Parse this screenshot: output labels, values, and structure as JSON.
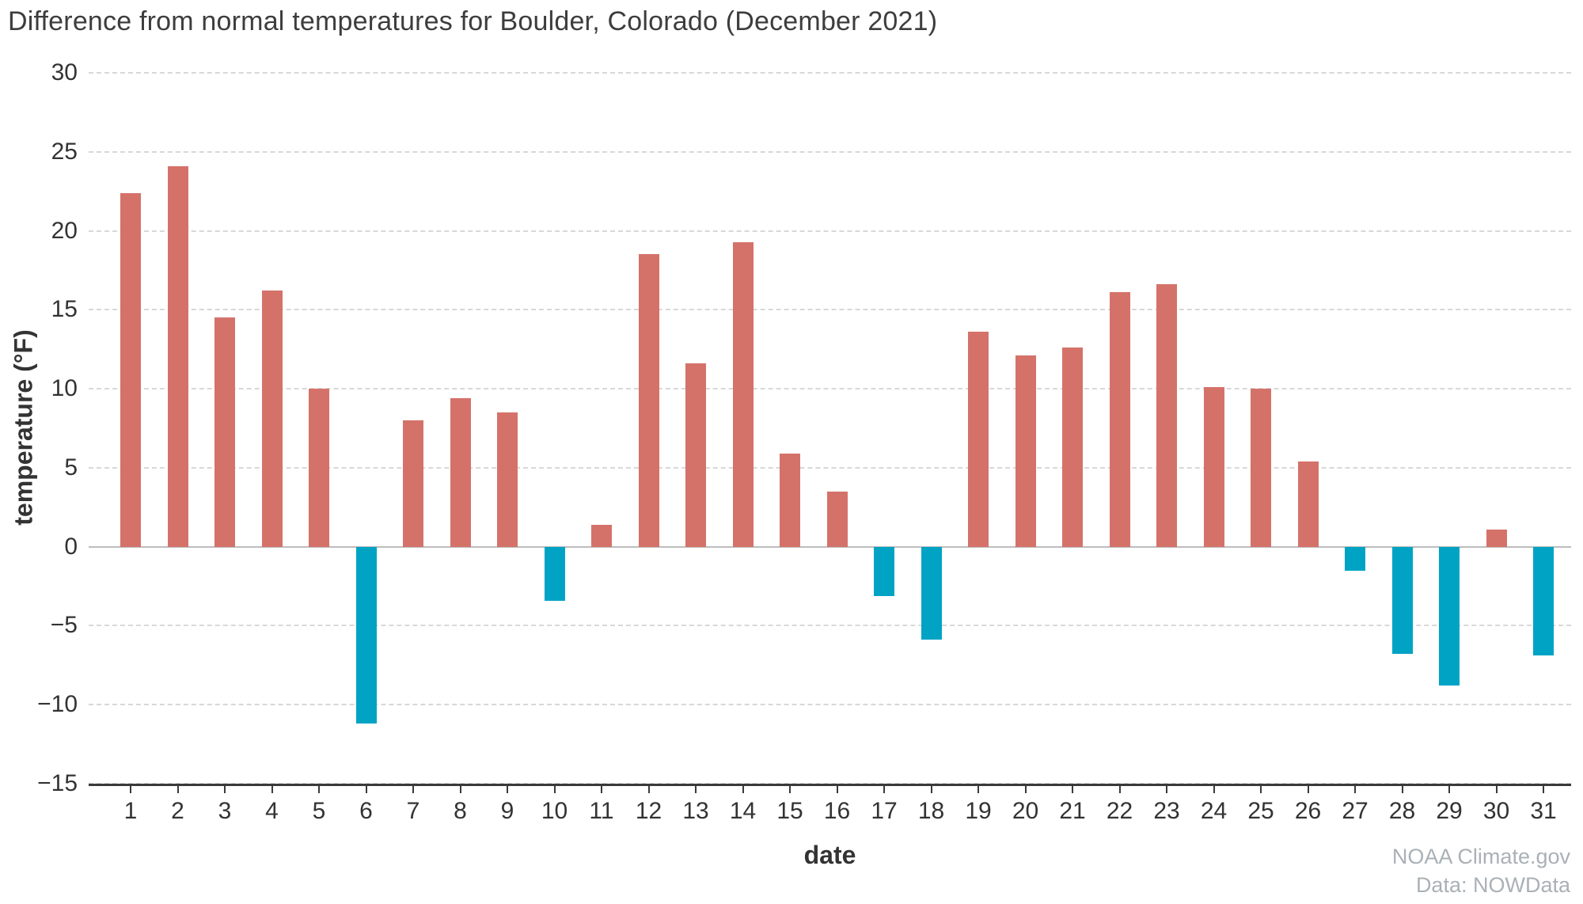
{
  "title": "Difference from normal temperatures for Boulder, Colorado (December 2021)",
  "attribution": {
    "line1": "NOAA Climate.gov",
    "line2": "Data: NOWData"
  },
  "chart_data": {
    "type": "bar",
    "title": "Difference from normal temperatures for Boulder, Colorado (December 2021)",
    "xlabel": "date",
    "ylabel": "temperature (°F)",
    "ylim": [
      -15,
      30
    ],
    "yticks": [
      30,
      25,
      20,
      15,
      10,
      5,
      0,
      -5,
      -10,
      -15
    ],
    "grid": "horizontal dashed",
    "legend": "none",
    "categories": [
      1,
      2,
      3,
      4,
      5,
      6,
      7,
      8,
      9,
      10,
      11,
      12,
      13,
      14,
      15,
      16,
      17,
      18,
      19,
      20,
      21,
      22,
      23,
      24,
      25,
      26,
      27,
      28,
      29,
      30,
      31
    ],
    "values": [
      22.4,
      24.1,
      14.5,
      16.2,
      10.0,
      -11.2,
      8.0,
      9.4,
      8.5,
      -3.4,
      1.4,
      18.5,
      11.6,
      19.3,
      5.9,
      3.5,
      -3.1,
      -5.9,
      13.6,
      12.1,
      12.6,
      16.1,
      16.6,
      10.1,
      10.0,
      5.4,
      -1.5,
      -6.8,
      -8.8,
      1.1,
      -6.9
    ],
    "positive_color": "#d4726a",
    "negative_color": "#00a3c4",
    "grid_color": "#d8d8d8",
    "zero_line_color": "#bdbdbd",
    "axis_color": "#3a3a3a"
  }
}
